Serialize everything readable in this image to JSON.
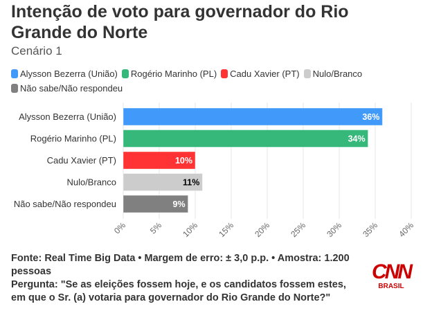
{
  "chart_data": {
    "type": "bar",
    "orientation": "horizontal",
    "title": "Intenção de voto para governador do Rio Grande do Norte",
    "subtitle": "Cenário 1",
    "categories": [
      "Alysson Bezerra (União)",
      "Rogério Marinho (PL)",
      "Cadu Xavier (PT)",
      "Nulo/Branco",
      "Não sabe/Não respondeu"
    ],
    "values": [
      36,
      34,
      10,
      11,
      9
    ],
    "data_labels": [
      "36%",
      "34%",
      "10%",
      "11%",
      "9%"
    ],
    "colors": [
      "#4199fa",
      "#36b87a",
      "#ff3333",
      "#cccccc",
      "#808080"
    ],
    "label_colors": [
      "#ffffff",
      "#ffffff",
      "#ffffff",
      "#000000",
      "#ffffff"
    ],
    "legend": [
      "Alysson Bezerra (União)",
      "Rogério Marinho (PL)",
      "Cadu Xavier (PT)",
      "Nulo/Branco",
      "Não sabe/Não respondeu"
    ],
    "legend_position": "top-left",
    "xlim": [
      0,
      40
    ],
    "xticks": [
      0,
      5,
      10,
      15,
      20,
      25,
      30,
      35,
      40
    ],
    "xtick_labels": [
      "0%",
      "5%",
      "10%",
      "15%",
      "20%",
      "25%",
      "30%",
      "35%",
      "40%"
    ],
    "grid": true,
    "xlabel": "",
    "ylabel": ""
  },
  "footer": {
    "source": "Fonte: Real Time Big Data • Margem de erro: ± 3,0 p.p. • Amostra: 1.200 pessoas",
    "question": "Pergunta: \"Se as eleições fossem hoje, e os candidatos fossem estes, em que o Sr. (a) votaria para governador do Rio Grande do Norte?\""
  },
  "logo": {
    "brand": "CNN",
    "sub": "BRASIL"
  }
}
